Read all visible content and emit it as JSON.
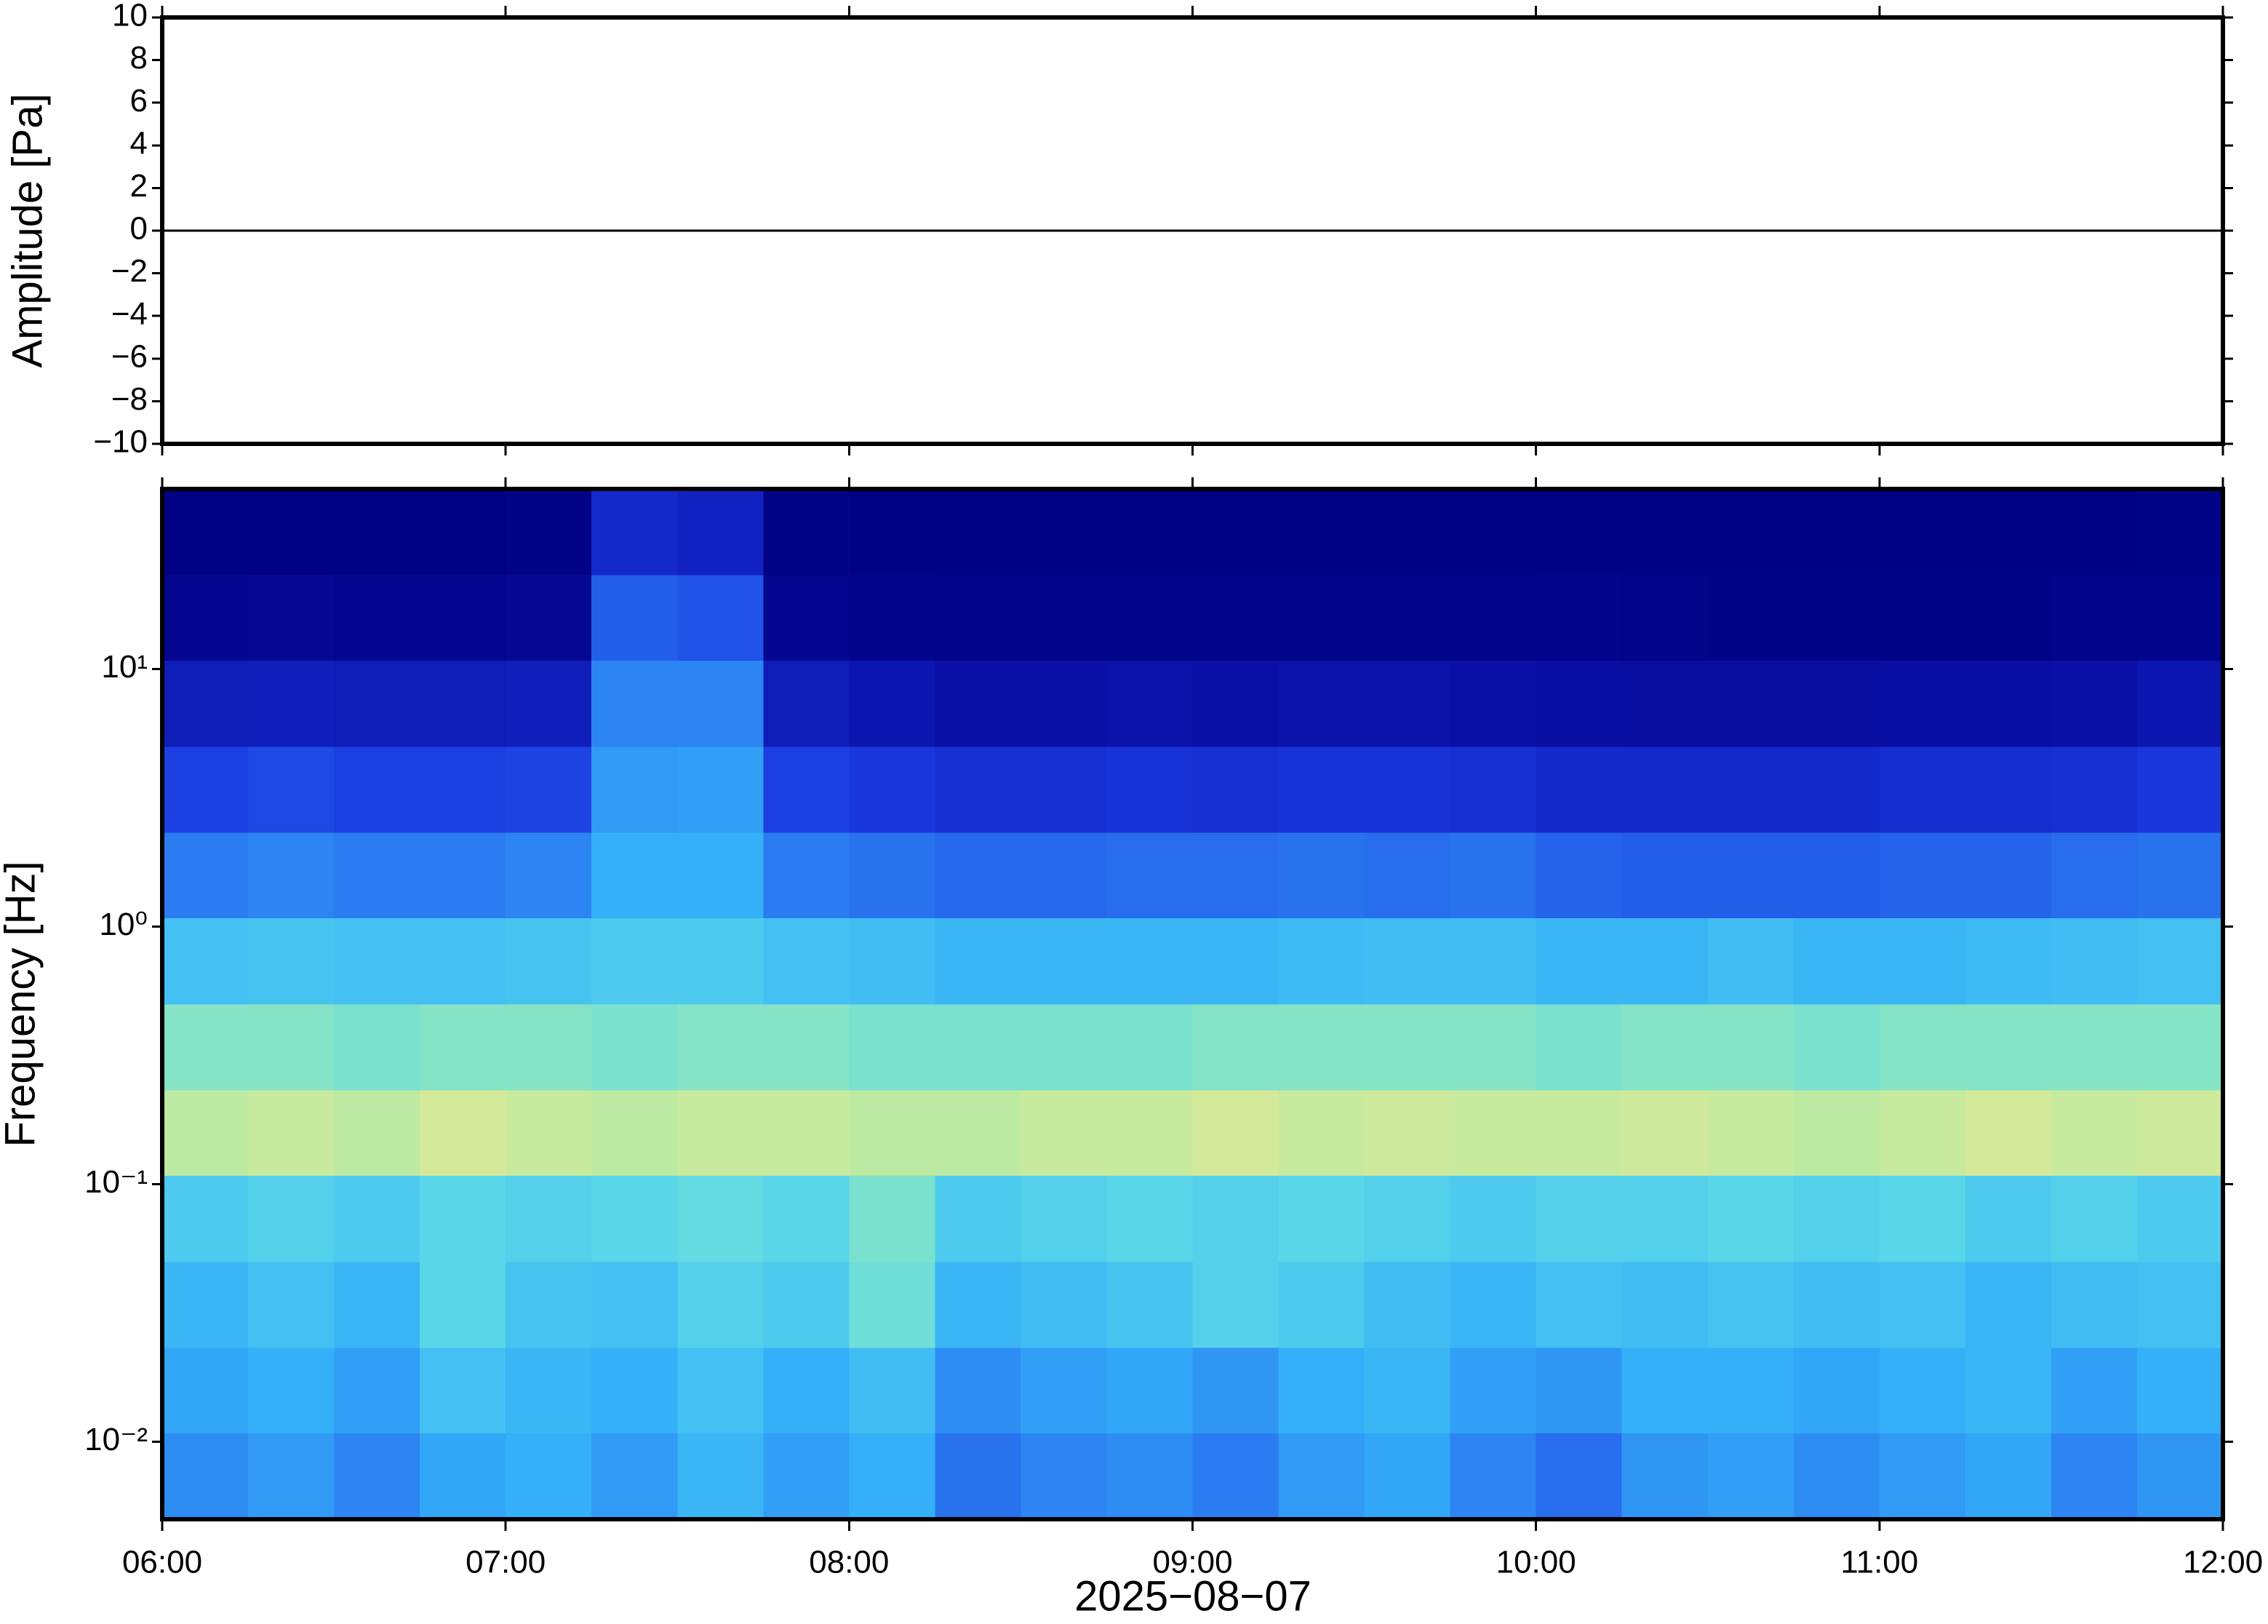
{
  "chart_data": [
    {
      "type": "line",
      "ylabel": "Amplitude [Pa]",
      "x": [
        6,
        6.5,
        7,
        7.5,
        8,
        8.5,
        9,
        9.5,
        10,
        10.5,
        11,
        11.5,
        12
      ],
      "values": [
        0,
        0,
        0,
        0,
        0,
        0,
        0,
        0,
        0,
        0,
        0,
        0,
        0
      ],
      "color": "#000000",
      "xlim": [
        6,
        12
      ],
      "ylim": [
        -10,
        10
      ],
      "yticks": [
        {
          "value": -10,
          "label": "−10"
        },
        {
          "value": -8,
          "label": "−8"
        },
        {
          "value": -6,
          "label": "−6"
        },
        {
          "value": -4,
          "label": "−4"
        },
        {
          "value": -2,
          "label": "−2"
        },
        0,
        2,
        4,
        6,
        8,
        10
      ]
    },
    {
      "type": "heatmap",
      "ylabel": "Frequency [Hz]",
      "xlabel": "2025−08−07",
      "log_y": true,
      "xlim": [
        6,
        12
      ],
      "ylim": [
        0.005,
        50
      ],
      "xticks": [
        {
          "value": 6,
          "label": "06:00"
        },
        {
          "value": 7,
          "label": "07:00"
        },
        {
          "value": 8,
          "label": "08:00"
        },
        {
          "value": 9,
          "label": "09:00"
        },
        {
          "value": 10,
          "label": "10:00"
        },
        {
          "value": 11,
          "label": "11:00"
        },
        {
          "value": 12,
          "label": "12:00"
        }
      ],
      "yticks": [
        {
          "value": 0.01,
          "label": "10⁻²"
        },
        {
          "value": 0.1,
          "label": "10⁻¹"
        },
        {
          "value": 1,
          "label": "10⁰"
        },
        {
          "value": 10,
          "label": "10¹"
        }
      ],
      "xbins": [
        6,
        6.25,
        6.5,
        6.75,
        7,
        7.25,
        7.5,
        7.75,
        8,
        8.25,
        8.5,
        8.75,
        9,
        9.25,
        9.5,
        9.75,
        10,
        10.25,
        10.5,
        10.75,
        11,
        11.25,
        11.5,
        11.75,
        12
      ],
      "ybins": [
        0.005,
        0.0108,
        0.0232,
        0.05,
        0.108,
        0.232,
        0.5,
        1.08,
        2.32,
        5,
        10.8,
        23.2,
        50
      ],
      "zlim": [
        0,
        1
      ],
      "colormap": [
        "#000080",
        "#0a10a8",
        "#1a3ae0",
        "#2a7af0",
        "#34b0f8",
        "#5cd8e8",
        "#a0ecb0",
        "#e8e890",
        "#f6b070"
      ],
      "z": [
        [
          0.42,
          0.45,
          0.4,
          0.48,
          0.5,
          0.45,
          0.52,
          0.46,
          0.5,
          0.36,
          0.4,
          0.42,
          0.38,
          0.45,
          0.48,
          0.4,
          0.35,
          0.44,
          0.46,
          0.42,
          0.45,
          0.48,
          0.4,
          0.44
        ],
        [
          0.48,
          0.5,
          0.46,
          0.55,
          0.52,
          0.5,
          0.55,
          0.5,
          0.54,
          0.42,
          0.46,
          0.48,
          0.44,
          0.5,
          0.52,
          0.46,
          0.44,
          0.5,
          0.5,
          0.48,
          0.5,
          0.52,
          0.46,
          0.5
        ],
        [
          0.52,
          0.55,
          0.52,
          0.62,
          0.56,
          0.55,
          0.6,
          0.58,
          0.66,
          0.52,
          0.54,
          0.56,
          0.6,
          0.58,
          0.54,
          0.52,
          0.55,
          0.54,
          0.56,
          0.54,
          0.55,
          0.52,
          0.54,
          0.55
        ],
        [
          0.58,
          0.6,
          0.58,
          0.62,
          0.6,
          0.62,
          0.64,
          0.62,
          0.68,
          0.58,
          0.6,
          0.62,
          0.6,
          0.62,
          0.6,
          0.58,
          0.6,
          0.6,
          0.62,
          0.6,
          0.62,
          0.58,
          0.6,
          0.58
        ],
        [
          0.8,
          0.82,
          0.8,
          0.84,
          0.82,
          0.8,
          0.82,
          0.82,
          0.8,
          0.8,
          0.82,
          0.82,
          0.84,
          0.82,
          0.83,
          0.82,
          0.82,
          0.83,
          0.82,
          0.8,
          0.82,
          0.84,
          0.82,
          0.83
        ],
        [
          0.7,
          0.7,
          0.68,
          0.7,
          0.7,
          0.68,
          0.7,
          0.7,
          0.68,
          0.68,
          0.68,
          0.68,
          0.7,
          0.7,
          0.7,
          0.7,
          0.68,
          0.7,
          0.7,
          0.68,
          0.7,
          0.7,
          0.7,
          0.7
        ],
        [
          0.55,
          0.56,
          0.55,
          0.55,
          0.56,
          0.58,
          0.58,
          0.55,
          0.54,
          0.52,
          0.52,
          0.52,
          0.52,
          0.53,
          0.54,
          0.54,
          0.52,
          0.52,
          0.54,
          0.52,
          0.52,
          0.53,
          0.54,
          0.55
        ],
        [
          0.38,
          0.4,
          0.38,
          0.38,
          0.4,
          0.5,
          0.5,
          0.38,
          0.36,
          0.34,
          0.34,
          0.35,
          0.35,
          0.36,
          0.35,
          0.36,
          0.33,
          0.32,
          0.32,
          0.32,
          0.33,
          0.33,
          0.35,
          0.36
        ],
        [
          0.26,
          0.28,
          0.26,
          0.26,
          0.27,
          0.45,
          0.46,
          0.26,
          0.24,
          0.22,
          0.22,
          0.23,
          0.22,
          0.23,
          0.23,
          0.22,
          0.2,
          0.2,
          0.2,
          0.2,
          0.21,
          0.21,
          0.22,
          0.24
        ],
        [
          0.16,
          0.17,
          0.16,
          0.16,
          0.17,
          0.4,
          0.4,
          0.16,
          0.14,
          0.12,
          0.12,
          0.13,
          0.12,
          0.13,
          0.13,
          0.12,
          0.11,
          0.1,
          0.1,
          0.1,
          0.11,
          0.11,
          0.12,
          0.14
        ],
        [
          0.05,
          0.06,
          0.05,
          0.05,
          0.06,
          0.32,
          0.3,
          0.05,
          0.04,
          0.03,
          0.03,
          0.03,
          0.03,
          0.03,
          0.03,
          0.03,
          0.04,
          0.03,
          0.02,
          0.02,
          0.02,
          0.02,
          0.03,
          0.04
        ],
        [
          0.01,
          0.01,
          0.01,
          0.01,
          0.02,
          0.2,
          0.18,
          0.02,
          0.01,
          0.01,
          0.01,
          0.01,
          0.01,
          0.01,
          0.01,
          0.01,
          0.01,
          0.01,
          0.01,
          0.01,
          0.01,
          0.01,
          0.01,
          0.02
        ]
      ]
    }
  ]
}
